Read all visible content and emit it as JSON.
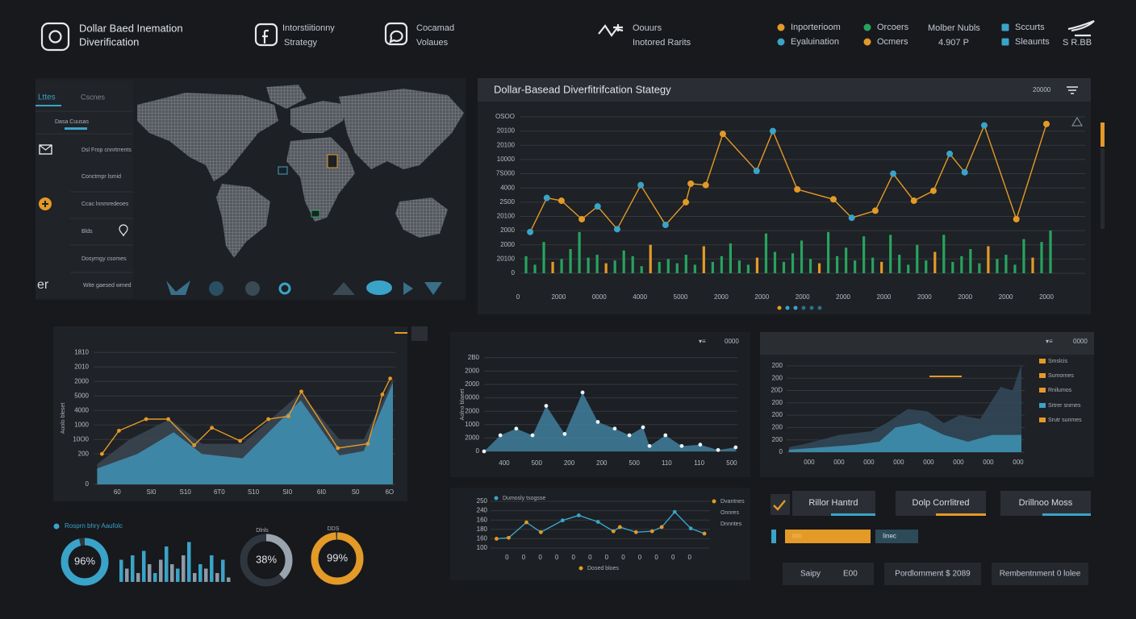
{
  "header": {
    "items": [
      {
        "line1": "Dollar Baed Inemation",
        "line2": "Diverification"
      },
      {
        "line1": "Intorstiitionny",
        "line2": "Strategy"
      },
      {
        "line1": "Cocamad",
        "line2": "Volaues"
      },
      {
        "line1": "Oouurs",
        "line2": "Inotored Rarits"
      }
    ],
    "legend": [
      {
        "label": "Inporterioom",
        "color": "#e39a27"
      },
      {
        "label": "Eyaluination",
        "color": "#3aa3c8"
      },
      {
        "label": "Orcoers",
        "color": "#27a35f"
      },
      {
        "label": "Ocmers",
        "color": "#e39a27"
      },
      {
        "label": "Sccurts",
        "color": "#3aa3c8"
      },
      {
        "label": "Sleaunts",
        "color": "#3aa3c8"
      }
    ],
    "stats": {
      "title": "Molber Nubls",
      "value": "4.907 P"
    },
    "badge": "S R.BB"
  },
  "sidebar": {
    "tabs": [
      "Lttes",
      "Cscnes"
    ],
    "subtitle": "Dasa Cuusas",
    "items": [
      "Dsl Frop cnnrtrrents",
      "Conctrnpr lsmid",
      "Ccac lnnmredeoes",
      "Blds",
      "Dosyrngy csomes",
      "Wite gaesed wmed"
    ],
    "corner": "er"
  },
  "bottom_left_title": "Rosprn bhry Aaufolc",
  "controls": {
    "buttons": [
      "Rillor Hantrd",
      "Dolp Corrlitred",
      "Drillnoo Moss"
    ],
    "progress_label": "000",
    "progress_tag": "Iinec",
    "footer": [
      [
        "Saipy",
        "E00"
      ],
      [
        "Pordlornment $ 2089"
      ],
      [
        "Rembentnment 0 lolee"
      ]
    ]
  },
  "chart_data": [
    {
      "type": "combo",
      "title": "Dollar-Basead Diverfitrifcation Stategy",
      "control_label": "20000",
      "grid": true,
      "xlim": [
        0,
        13
      ],
      "ylim": [
        0,
        11
      ],
      "xticks": [
        0,
        {
          "value": 1,
          "label": "2000"
        },
        {
          "value": 2,
          "label": "0000"
        },
        {
          "value": 3,
          "label": "4000"
        },
        {
          "value": 4,
          "label": "5000"
        },
        {
          "value": 5,
          "label": "2000"
        },
        {
          "value": 6,
          "label": "2000"
        },
        {
          "value": 7,
          "label": "2000"
        },
        {
          "value": 8,
          "label": "2000"
        },
        {
          "value": 9,
          "label": "2000"
        },
        {
          "value": 10,
          "label": "2000"
        },
        {
          "value": 11,
          "label": "2000"
        },
        {
          "value": 12,
          "label": "2000"
        },
        {
          "value": 13,
          "label": "2000"
        }
      ],
      "yticks": [
        0,
        {
          "value": 1,
          "label": "20100"
        },
        {
          "value": 2,
          "label": "2000"
        },
        {
          "value": 3,
          "label": "2000"
        },
        {
          "value": 4,
          "label": "20100"
        },
        {
          "value": 5,
          "label": "2S00"
        },
        {
          "value": 6,
          "label": "4000"
        },
        {
          "value": 7,
          "label": "7S000"
        },
        {
          "value": 8,
          "label": "10000"
        },
        {
          "value": 9,
          "label": "20100"
        },
        {
          "value": 10,
          "label": "20100"
        },
        {
          "value": 11,
          "label": "OSOO"
        }
      ],
      "series": [
        {
          "kind": "bar",
          "values": [
            1.2,
            0.6,
            2.2,
            0.8,
            1.0,
            1.7,
            2.9,
            1.1,
            1.3,
            0.7,
            0.9,
            1.6,
            1.2,
            0.5,
            2.0,
            0.8,
            1.0,
            0.7,
            1.3,
            0.6,
            1.9,
            0.8,
            1.2,
            2.1,
            0.9,
            0.6,
            1.1,
            2.8,
            1.5,
            0.8,
            1.4,
            2.3,
            1.0,
            0.7,
            2.9,
            1.2,
            1.8,
            0.9,
            2.6,
            1.1,
            0.8,
            2.7,
            1.3,
            0.6,
            2.0,
            0.9,
            1.5,
            2.7,
            0.8,
            1.2,
            1.7,
            0.7,
            1.9,
            1.0,
            1.3,
            0.6,
            2.4,
            1.1,
            2.2,
            3.0
          ],
          "colors": [
            "#27a35f",
            "#27a35f",
            "#27a35f",
            "#e39a27",
            "#27a35f",
            "#27a35f",
            "#27a35f",
            "#27a35f",
            "#27a35f",
            "#e39a27",
            "#27a35f",
            "#27a35f",
            "#27a35f",
            "#27a35f",
            "#e39a27",
            "#27a35f",
            "#27a35f",
            "#27a35f",
            "#27a35f",
            "#27a35f",
            "#e39a27",
            "#27a35f",
            "#27a35f",
            "#27a35f",
            "#27a35f",
            "#27a35f",
            "#e39a27",
            "#27a35f",
            "#27a35f",
            "#27a35f",
            "#27a35f",
            "#27a35f",
            "#27a35f",
            "#e39a27",
            "#27a35f",
            "#27a35f",
            "#27a35f",
            "#27a35f",
            "#27a35f",
            "#27a35f",
            "#e39a27",
            "#27a35f",
            "#27a35f",
            "#27a35f",
            "#27a35f",
            "#27a35f",
            "#e39a27",
            "#27a35f",
            "#27a35f",
            "#27a35f",
            "#27a35f",
            "#27a35f",
            "#e39a27",
            "#27a35f",
            "#27a35f",
            "#27a35f",
            "#27a35f",
            "#e39a27",
            "#27a35f",
            "#27a35f"
          ]
        },
        {
          "kind": "line",
          "color": "#e39a27",
          "x": [
            0.3,
            0.71,
            1.07,
            1.57,
            1.96,
            2.44,
            3.02,
            3.63,
            4.13,
            4.25,
            4.62,
            5.04,
            5.87,
            6.27,
            6.87,
            7.76,
            8.21,
            8.79,
            9.23,
            9.74,
            10.22,
            10.62,
            10.99,
            11.47,
            12.26,
            13.0
          ],
          "values": [
            2.9,
            5.3,
            5.1,
            3.8,
            4.7,
            3.1,
            6.2,
            3.4,
            5.0,
            6.3,
            6.2,
            9.8,
            7.2,
            10.0,
            5.9,
            5.2,
            3.9,
            4.4,
            7.0,
            5.1,
            5.8,
            8.4,
            7.1,
            10.4,
            3.8,
            10.5
          ],
          "marker_colors": [
            "#3aa3c8",
            "#3aa3c8",
            "#e39a27",
            "#e39a27",
            "#3aa3c8",
            "#3aa3c8",
            "#3aa3c8",
            "#3aa3c8",
            "#e39a27",
            "#e39a27",
            "#e39a27",
            "#e39a27",
            "#3aa3c8",
            "#3aa3c8",
            "#e39a27",
            "#e39a27",
            "#3aa3c8",
            "#e39a27",
            "#3aa3c8",
            "#e39a27",
            "#e39a27",
            "#3aa3c8",
            "#3aa3c8",
            "#3aa3c8",
            "#e39a27",
            "#e39a27"
          ]
        }
      ]
    },
    {
      "type": "area",
      "y_label": "Auolo bleset",
      "grid": true,
      "xlim": [
        -0.6,
        8.1
      ],
      "ylim": [
        0,
        9.1
      ],
      "xticks": [
        {
          "value": 0,
          "label": "60"
        },
        {
          "value": 1,
          "label": "SI0"
        },
        {
          "value": 2,
          "label": "S10"
        },
        {
          "value": 3,
          "label": "6T0"
        },
        {
          "value": 4,
          "label": "S10"
        },
        {
          "value": 5,
          "label": "SI0"
        },
        {
          "value": 6,
          "label": "6I0"
        },
        {
          "value": 7,
          "label": "S0"
        },
        {
          "value": 8,
          "label": "6O"
        }
      ],
      "yticks": [
        0,
        {
          "value": 2.1,
          "label": "200"
        },
        {
          "value": 3.1,
          "label": "10O0"
        },
        {
          "value": 4.1,
          "label": "1000"
        },
        {
          "value": 5.1,
          "label": "4000"
        },
        {
          "value": 6.1,
          "label": "5000"
        },
        {
          "value": 7.1,
          "label": "2000"
        },
        {
          "value": 8.1,
          "label": "2010"
        },
        {
          "value": 9.1,
          "label": "1810"
        }
      ],
      "series": [
        {
          "kind": "area",
          "color": "#3b4652",
          "x": [
            -0.59,
            0.36,
            1.54,
            2.49,
            3.68,
            5.39,
            6.53,
            7.24,
            8.1
          ],
          "values": [
            1.4,
            3.1,
            4.5,
            2.8,
            2.8,
            6.3,
            3.1,
            3.1,
            7.3
          ]
        },
        {
          "kind": "area",
          "color": "#3f93b5",
          "x": [
            -0.59,
            0.59,
            1.66,
            2.49,
            3.68,
            5.39,
            6.53,
            7.24,
            8.1
          ],
          "values": [
            1.1,
            2.1,
            3.6,
            2.1,
            1.8,
            5.8,
            2.0,
            2.3,
            7.0
          ]
        },
        {
          "kind": "line",
          "color": "#e39a27",
          "marker_color": "#e39a27",
          "x": [
            -0.45,
            0.05,
            0.85,
            1.5,
            2.26,
            2.78,
            3.61,
            4.44,
            5.03,
            5.41,
            6.48,
            7.36,
            7.79,
            8.02
          ],
          "values": [
            2.1,
            3.7,
            4.5,
            4.5,
            2.7,
            3.9,
            3.0,
            4.5,
            4.7,
            6.4,
            2.5,
            2.8,
            6.2,
            7.3
          ]
        }
      ]
    },
    {
      "type": "area",
      "y_label": "Aolno blaeet",
      "control_label": "0000",
      "grid": true,
      "xlim": [
        -0.62,
        7.15
      ],
      "ylim": [
        0,
        7
      ],
      "xticks": [
        {
          "value": 0,
          "label": "400"
        },
        {
          "value": 1,
          "label": "500"
        },
        {
          "value": 2,
          "label": "200"
        },
        {
          "value": 3,
          "label": "200"
        },
        {
          "value": 4,
          "label": "500"
        },
        {
          "value": 5,
          "label": "110"
        },
        {
          "value": 6,
          "label": "110"
        },
        {
          "value": 7,
          "label": "500"
        }
      ],
      "yticks": [
        0,
        {
          "value": 1,
          "label": "2000"
        },
        {
          "value": 2,
          "label": "1000"
        },
        {
          "value": 3,
          "label": "2000"
        },
        {
          "value": 4,
          "label": "0000"
        },
        {
          "value": 5,
          "label": "2000"
        },
        {
          "value": 6,
          "label": "2000"
        },
        {
          "value": 7,
          "label": "2B0"
        }
      ],
      "series": [
        {
          "kind": "area",
          "color": "#3f7f9c",
          "marker_color": "#e8f4fa",
          "x": [
            -0.62,
            -0.12,
            0.37,
            0.87,
            1.29,
            1.86,
            2.41,
            2.88,
            3.4,
            3.85,
            4.27,
            4.47,
            4.96,
            5.46,
            6.03,
            6.58,
            7.12
          ],
          "values": [
            0,
            1.2,
            1.7,
            1.2,
            3.4,
            1.3,
            4.4,
            2.2,
            1.7,
            1.2,
            1.8,
            0.4,
            1.2,
            0.4,
            0.5,
            0.1,
            0.3
          ]
        }
      ]
    },
    {
      "type": "line",
      "grid": true,
      "xlim": [
        -0.7,
        12.1
      ],
      "ylim": [
        0,
        5
      ],
      "xticks": [
        0,
        {
          "value": 1,
          "label": "0"
        },
        {
          "value": 2,
          "label": "0"
        },
        {
          "value": 3,
          "label": "0"
        },
        {
          "value": 4,
          "label": "0"
        },
        {
          "value": 5,
          "label": "0"
        },
        {
          "value": 6,
          "label": "0"
        },
        {
          "value": 7,
          "label": "0"
        },
        {
          "value": 8,
          "label": "0"
        },
        {
          "value": 9,
          "label": "0"
        },
        {
          "value": 10,
          "label": "0"
        },
        {
          "value": 11,
          "label": "0"
        }
      ],
      "yticks": [
        {
          "value": 0,
          "label": "100"
        },
        {
          "value": 1,
          "label": "160"
        },
        {
          "value": 2,
          "label": "180"
        },
        {
          "value": 3,
          "label": "160"
        },
        {
          "value": 4,
          "label": "240"
        },
        {
          "value": 5,
          "label": "250"
        }
      ],
      "legend": [
        {
          "label": "Dumosly tsogsse",
          "color": "#3aa3c8"
        },
        {
          "label": "Dvantnes",
          "color": "#e39a27"
        },
        {
          "label": "Onnres"
        },
        {
          "label": "Dnnntes"
        },
        {
          "label": "Dosed bloes",
          "color": "#e39a27"
        }
      ],
      "series": [
        {
          "kind": "line",
          "color": "#3aa3c8",
          "x": [
            -0.63,
            0.1,
            1.17,
            2.04,
            3.35,
            4.32,
            5.48,
            6.41,
            6.8,
            7.77,
            8.74,
            9.32,
            10.1,
            11.07,
            11.89
          ],
          "values": [
            1.0,
            1.1,
            2.75,
            1.7,
            2.96,
            3.5,
            2.8,
            1.8,
            2.25,
            1.7,
            1.8,
            2.25,
            3.87,
            2.1,
            1.55
          ],
          "marker_colors": [
            "#e39a27",
            "#e39a27",
            "#e39a27",
            "#e39a27",
            "#3aa3c8",
            "#3aa3c8",
            "#3aa3c8",
            "#e39a27",
            "#e39a27",
            "#e39a27",
            "#e39a27",
            "#e39a27",
            "#3aa3c8",
            "#3aa3c8",
            "#e39a27"
          ]
        }
      ]
    },
    {
      "type": "area",
      "control_label": "0000",
      "grid": true,
      "xlim": [
        -0.7,
        7.15
      ],
      "ylim": [
        0,
        7
      ],
      "xticks": [
        {
          "value": 0,
          "label": "000"
        },
        {
          "value": 1,
          "label": "000"
        },
        {
          "value": 2,
          "label": "000"
        },
        {
          "value": 3,
          "label": "000"
        },
        {
          "value": 4,
          "label": "000"
        },
        {
          "value": 5,
          "label": "000"
        },
        {
          "value": 6,
          "label": "000"
        },
        {
          "value": 7,
          "label": "000"
        }
      ],
      "yticks": [
        0,
        {
          "value": 1,
          "label": "200"
        },
        {
          "value": 2,
          "label": "200"
        },
        {
          "value": 3,
          "label": "200"
        },
        {
          "value": 4,
          "label": "200"
        },
        {
          "value": 5,
          "label": "20D"
        },
        {
          "value": 6,
          "label": "200"
        },
        {
          "value": 7,
          "label": "200"
        }
      ],
      "legend": [
        {
          "label": "Smslcis",
          "color": "#e39a27"
        },
        {
          "label": "Sumornes",
          "color": "#e39a27"
        },
        {
          "label": "Rnilumos",
          "color": "#e39a27"
        },
        {
          "label": "Srtrer snrnes",
          "color": "#3aa3c8"
        },
        {
          "label": "Srutr sunmes",
          "color": "#e39a27"
        }
      ],
      "series": [
        {
          "kind": "area",
          "color": "#34495a",
          "x": [
            -0.68,
            -0.08,
            1.0,
            2.08,
            2.62,
            3.3,
            3.97,
            4.51,
            5.05,
            5.73,
            6.41,
            6.81,
            7.11
          ],
          "values": [
            0.4,
            0.7,
            1.4,
            1.7,
            2.4,
            3.5,
            3.3,
            2.35,
            3.0,
            2.7,
            5.3,
            5.0,
            7.1
          ]
        },
        {
          "kind": "area",
          "color": "#3f93b5",
          "x": [
            -0.68,
            0.46,
            1.54,
            2.35,
            2.89,
            3.7,
            4.51,
            5.32,
            6.14,
            7.11
          ],
          "values": [
            0.2,
            0.4,
            0.6,
            0.85,
            2.0,
            2.35,
            1.4,
            0.85,
            1.4,
            1.4
          ]
        }
      ]
    },
    {
      "type": "donut",
      "values": [
        96
      ],
      "value_labels": [
        "96%"
      ],
      "color": "#3aa3c8"
    },
    {
      "type": "donut",
      "title": "Dlnls",
      "values": [
        38
      ],
      "value_labels": [
        "38%"
      ],
      "color": "#9aa4ae"
    },
    {
      "type": "donut",
      "title": "DDS",
      "values": [
        99
      ],
      "value_labels": [
        "99%"
      ],
      "color": "#e39a27"
    },
    {
      "type": "bar",
      "values": [
        5,
        3,
        6,
        2,
        7,
        4,
        2,
        5,
        8,
        4,
        3,
        6,
        9,
        2,
        4,
        3,
        6,
        2,
        5,
        1
      ],
      "colors": [
        "#3aa3c8",
        "#8e9aa6",
        "#3aa3c8",
        "#8e9aa6",
        "#3aa3c8",
        "#8e9aa6",
        "#3aa3c8",
        "#8e9aa6",
        "#3aa3c8",
        "#8e9aa6",
        "#3aa3c8",
        "#8e9aa6",
        "#3aa3c8",
        "#8e9aa6",
        "#3aa3c8",
        "#8e9aa6",
        "#3aa3c8",
        "#8e9aa6",
        "#3aa3c8",
        "#8e9aa6"
      ]
    }
  ]
}
